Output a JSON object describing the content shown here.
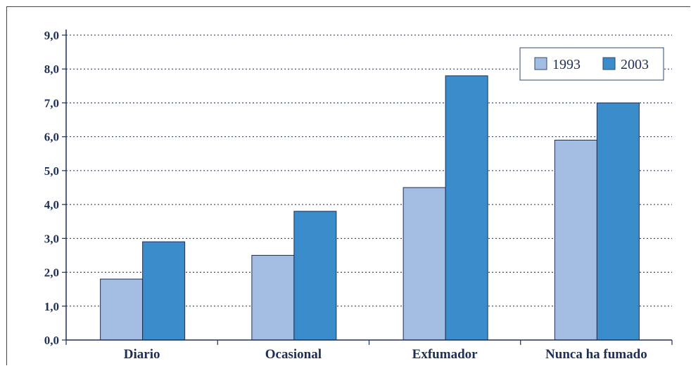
{
  "chart_data": {
    "type": "bar",
    "categories": [
      "Diario",
      "Ocasional",
      "Exfumador",
      "Nunca ha fumado"
    ],
    "series": [
      {
        "name": "1993",
        "values": [
          1.8,
          2.5,
          4.5,
          5.9
        ],
        "color": "#a3bde2"
      },
      {
        "name": "2003",
        "values": [
          2.9,
          3.8,
          7.8,
          7.0
        ],
        "color": "#3b8ccb"
      }
    ],
    "ylim": [
      0,
      9
    ],
    "yticks": [
      "0,0",
      "1,0",
      "2,0",
      "3,0",
      "4,0",
      "5,0",
      "6,0",
      "7,0",
      "8,0",
      "9,0"
    ],
    "grid": true,
    "legend_position": "top-right",
    "title": "",
    "xlabel": "",
    "ylabel": ""
  }
}
